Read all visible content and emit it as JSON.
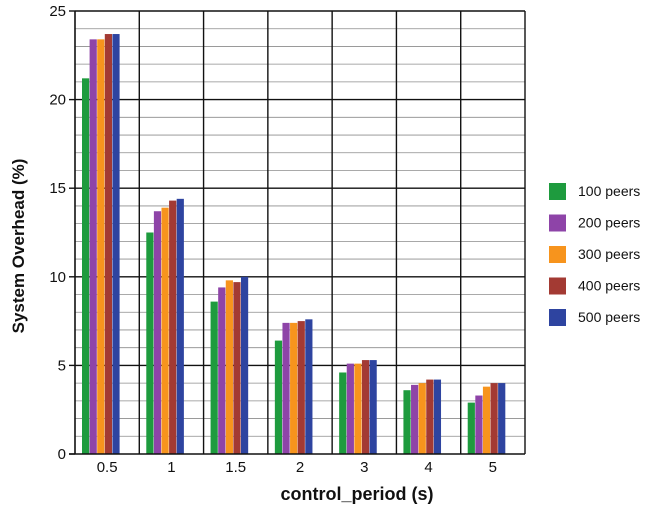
{
  "chart_data": {
    "type": "bar",
    "title": "",
    "xlabel": "control_period (s)",
    "ylabel": "System Overhead (%)",
    "categories": [
      "0.5",
      "1",
      "1.5",
      "2",
      "3",
      "4",
      "5"
    ],
    "ylim": [
      0,
      25
    ],
    "yticks": [
      "0",
      "5",
      "10",
      "15",
      "20",
      "25"
    ],
    "grid": true,
    "legend_position": "right",
    "series": [
      {
        "name": "100 peers",
        "color": "#1e9b3e",
        "values": [
          21.2,
          12.5,
          8.6,
          6.4,
          4.6,
          3.6,
          2.9
        ]
      },
      {
        "name": "200 peers",
        "color": "#8e44a8",
        "values": [
          23.4,
          13.7,
          9.4,
          7.4,
          5.1,
          3.9,
          3.3
        ]
      },
      {
        "name": "300 peers",
        "color": "#f7941d",
        "values": [
          23.4,
          13.9,
          9.8,
          7.4,
          5.1,
          4.0,
          3.8
        ]
      },
      {
        "name": "400 peers",
        "color": "#a33a33",
        "values": [
          23.7,
          14.3,
          9.7,
          7.5,
          5.3,
          4.2,
          4.0
        ]
      },
      {
        "name": "500 peers",
        "color": "#2e44a0",
        "values": [
          23.7,
          14.4,
          10.0,
          7.6,
          5.3,
          4.2,
          4.0
        ]
      }
    ]
  }
}
